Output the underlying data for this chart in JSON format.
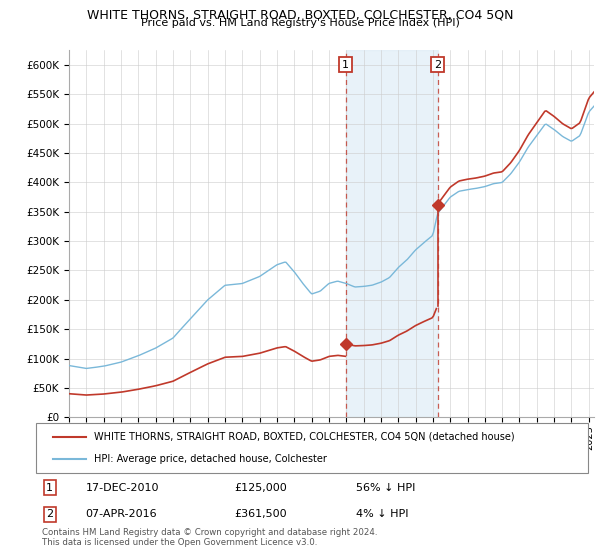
{
  "title": "WHITE THORNS, STRAIGHT ROAD, BOXTED, COLCHESTER, CO4 5QN",
  "subtitle": "Price paid vs. HM Land Registry's House Price Index (HPI)",
  "ylabel_ticks": [
    "£0",
    "£50K",
    "£100K",
    "£150K",
    "£200K",
    "£250K",
    "£300K",
    "£350K",
    "£400K",
    "£450K",
    "£500K",
    "£550K",
    "£600K"
  ],
  "ytick_values": [
    0,
    50000,
    100000,
    150000,
    200000,
    250000,
    300000,
    350000,
    400000,
    450000,
    500000,
    550000,
    600000
  ],
  "ylim": [
    0,
    625000
  ],
  "hpi_color": "#7ab8d9",
  "price_color": "#c0392b",
  "vline_color": "#c0392b",
  "shade_color": "#daeaf5",
  "marker1_date_x": 2010.96,
  "marker1_y": 125000,
  "marker2_date_x": 2016.27,
  "marker2_y": 361500,
  "legend_label_price": "WHITE THORNS, STRAIGHT ROAD, BOXTED, COLCHESTER, CO4 5QN (detached house)",
  "legend_label_hpi": "HPI: Average price, detached house, Colchester",
  "footer_text": "Contains HM Land Registry data © Crown copyright and database right 2024.\nThis data is licensed under the Open Government Licence v3.0.",
  "table_rows": [
    {
      "num": "1",
      "date": "17-DEC-2010",
      "price": "£125,000",
      "pct": "56% ↓ HPI"
    },
    {
      "num": "2",
      "date": "07-APR-2016",
      "price": "£361,500",
      "pct": "4% ↓ HPI"
    }
  ],
  "xlim_start": 1995.0,
  "xlim_end": 2025.3
}
